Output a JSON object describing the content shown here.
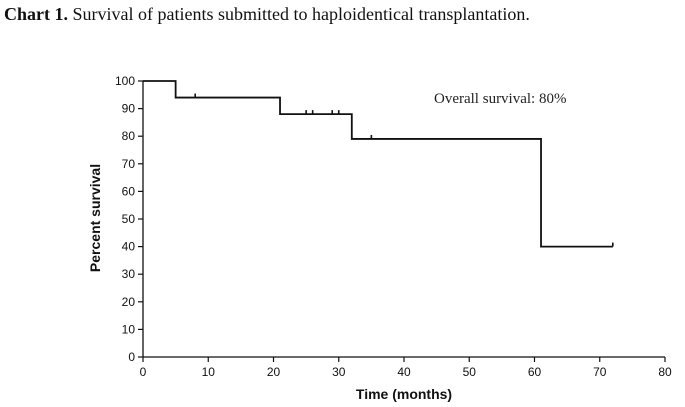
{
  "caption": {
    "lead": "Chart 1.",
    "text": " Survival of patients submitted to haploidentical transplantation."
  },
  "chart_data": {
    "type": "line",
    "subtype": "kaplan-meier-step",
    "xlabel": "Time (months)",
    "ylabel": "Percent survival",
    "xlim": [
      0,
      80
    ],
    "ylim": [
      0,
      100
    ],
    "xticks": [
      0,
      10,
      20,
      30,
      40,
      50,
      60,
      70,
      80
    ],
    "yticks": [
      0,
      10,
      20,
      30,
      40,
      50,
      60,
      70,
      80,
      90,
      100
    ],
    "grid": false,
    "annotation": "Overall survival: 80%",
    "series": [
      {
        "steps": [
          {
            "x": 0,
            "y": 100
          },
          {
            "x": 5,
            "y": 94
          },
          {
            "x": 21,
            "y": 88
          },
          {
            "x": 32,
            "y": 79
          },
          {
            "x": 61,
            "y": 40
          },
          {
            "x": 72,
            "y": 40
          }
        ],
        "censored": [
          {
            "x": 8,
            "y": 94
          },
          {
            "x": 25,
            "y": 88
          },
          {
            "x": 26,
            "y": 88
          },
          {
            "x": 29,
            "y": 88
          },
          {
            "x": 30,
            "y": 88
          },
          {
            "x": 35,
            "y": 79
          },
          {
            "x": 72,
            "y": 40
          }
        ],
        "color": "#111111"
      }
    ]
  }
}
